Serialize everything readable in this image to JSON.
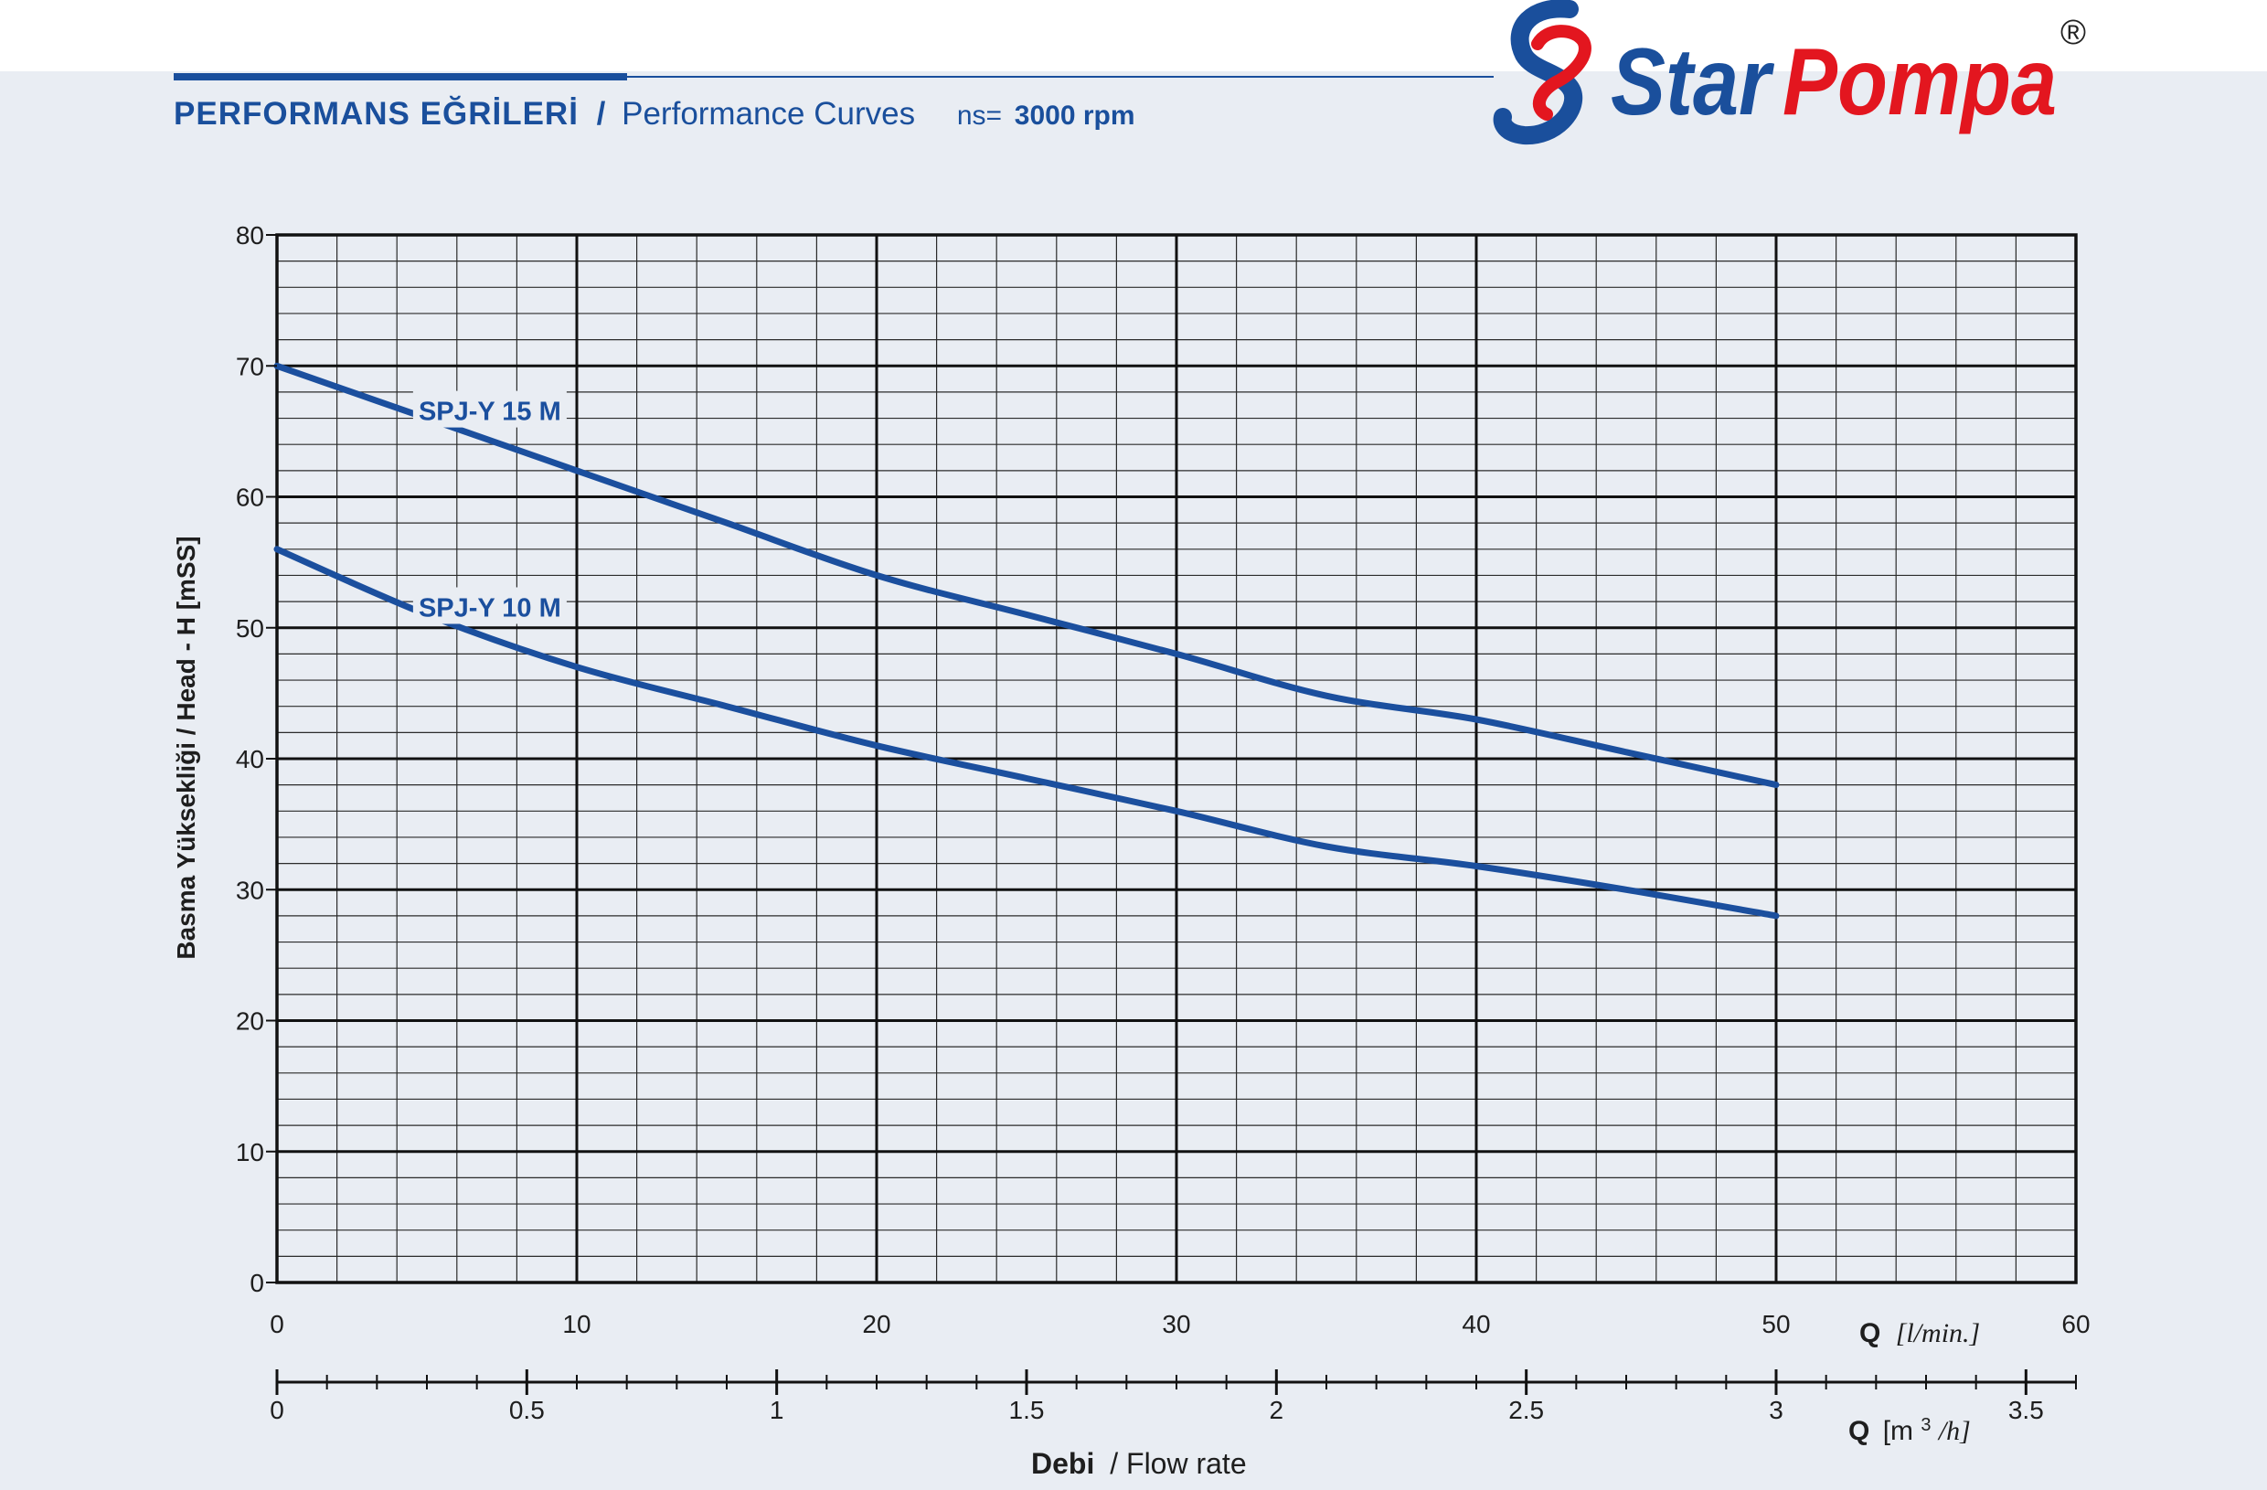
{
  "header": {
    "title_tr": "PERFORMANS EĞRİLERİ",
    "separator": "/",
    "title_en": "Performance Curves",
    "speed_label": "ns=",
    "speed_value": "3000 rpm"
  },
  "logo": {
    "text_star": "Star",
    "text_pompa": "Pompa",
    "registered_mark": "®"
  },
  "colors": {
    "accent": "#1a4f9c",
    "logo_red": "#e3161f",
    "curve": "#1b4f9e",
    "background": "#e9edf3"
  },
  "chart_data": {
    "type": "line",
    "ylabel": "Basma Yüksekliği / Head - H [mSS]",
    "xlabel_primary": "Q [l/min.]",
    "xlabel_secondary": "Q [m3/h]",
    "xlabel_bottom": "Debi / Flow rate",
    "xlim": [
      0,
      60
    ],
    "ylim": [
      0,
      80
    ],
    "x_ticks": [
      "0",
      "10",
      "20",
      "30",
      "40",
      "50",
      "60"
    ],
    "y_ticks": [
      "0",
      "10",
      "20",
      "30",
      "40",
      "50",
      "60",
      "70",
      "80"
    ],
    "secondary_axis": {
      "range": [
        0,
        3.6
      ],
      "ticks": [
        "0",
        "0.5",
        "1",
        "1.5",
        "2",
        "2.5",
        "3",
        "3.5"
      ],
      "label_q": "Q",
      "label_unit_open": "[m",
      "label_unit_sup": "3",
      "label_unit_close": "/h]"
    },
    "primary_axis_label": {
      "q": "Q",
      "unit": "[l/min.]"
    },
    "bottom_label": {
      "bold": "Debi",
      "rest": "/ Flow rate"
    },
    "grid": true,
    "series": [
      {
        "name": "SPJ-Y 15 M",
        "x": [
          0,
          5,
          10,
          15,
          20,
          25,
          30,
          35,
          40,
          45,
          50
        ],
        "y": [
          70,
          66,
          62,
          58,
          54,
          51,
          48,
          44.8,
          43,
          40.5,
          38
        ]
      },
      {
        "name": "SPJ-Y 10 M",
        "x": [
          0,
          5,
          10,
          15,
          20,
          25,
          30,
          35,
          40,
          45,
          50
        ],
        "y": [
          56,
          51,
          47,
          44,
          41,
          38.5,
          36,
          33.3,
          31.8,
          30,
          28
        ]
      }
    ]
  }
}
